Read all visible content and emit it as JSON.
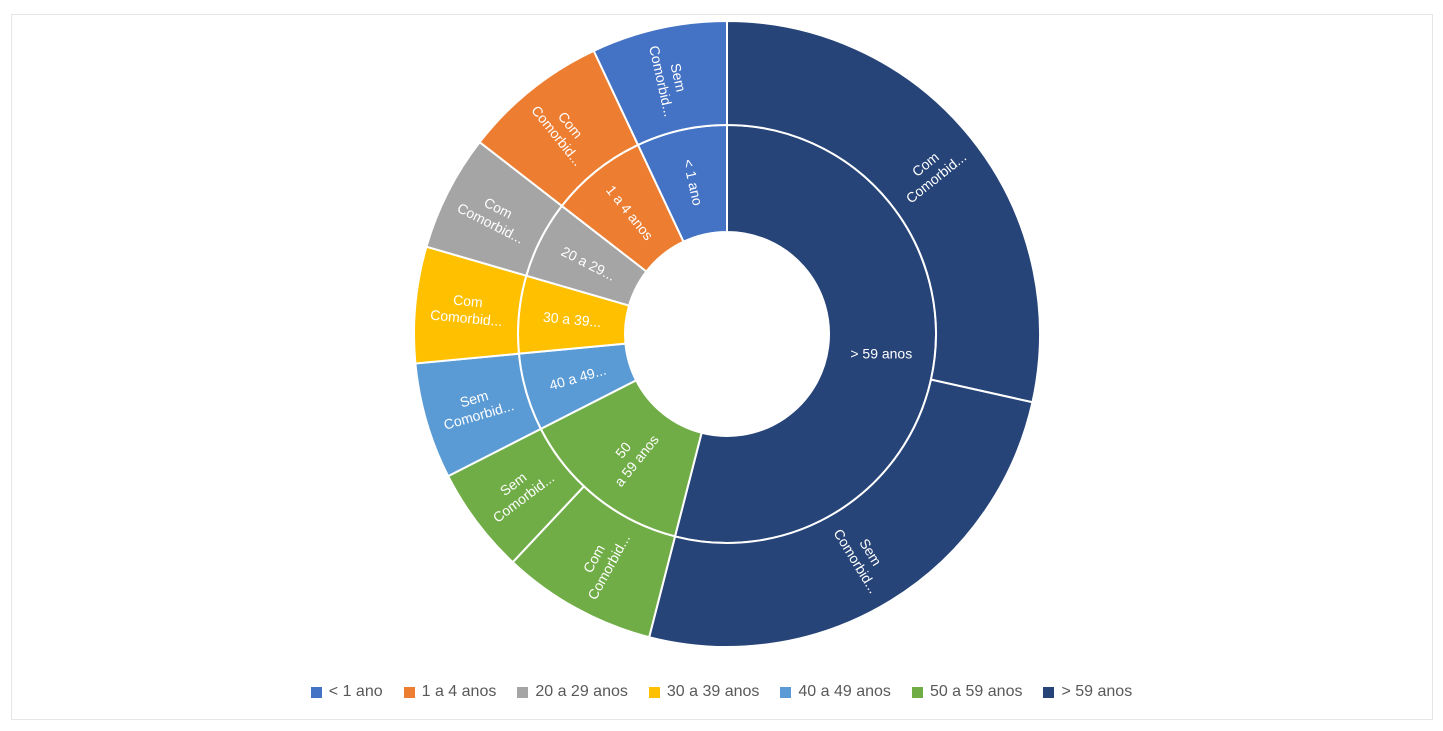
{
  "chart_data": {
    "type": "sunburst",
    "title": "",
    "legend_position": "bottom",
    "colors": {
      "< 1 ano": "#4472c4",
      "1 a 4 anos": "#ed7d31",
      "20 a 29 anos": "#a5a5a5",
      "30 a 39 anos": "#ffc000",
      "40 a 49 anos": "#5b9bd5",
      "50 a 59 anos": "#70ad47",
      "> 59 anos": "#264478"
    },
    "legend": [
      "< 1 ano",
      "1 a 4 anos",
      "20 a 29 anos",
      "30 a 39 anos",
      "40 a 49 anos",
      "50 a 59 anos",
      "> 59 anos"
    ],
    "inner_ring": [
      {
        "category": "> 59 anos",
        "label": "> 59 anos",
        "value": 54.0
      },
      {
        "category": "50 a 59 anos",
        "label": "50 a 59 anos",
        "value": 13.5
      },
      {
        "category": "40 a 49 anos",
        "label": "40 a 49...",
        "value": 6.0
      },
      {
        "category": "30 a 39 anos",
        "label": "30 a 39...",
        "value": 6.0
      },
      {
        "category": "20 a 29 anos",
        "label": "20 a 29...",
        "value": 6.0
      },
      {
        "category": "1 a 4 anos",
        "label": "1 a 4 anos",
        "value": 7.5
      },
      {
        "category": "< 1 ano",
        "label": "< 1 ano",
        "value": 7.0
      }
    ],
    "outer_ring": [
      {
        "parent": "> 59 anos",
        "label": "Com Comorbid...",
        "value": 28.5
      },
      {
        "parent": "> 59 anos",
        "label": "Sem Comorbid...",
        "value": 25.5
      },
      {
        "parent": "50 a 59 anos",
        "label": "Com Comorbid...",
        "value": 8.0
      },
      {
        "parent": "50 a 59 anos",
        "label": "Sem Comorbid...",
        "value": 5.5
      },
      {
        "parent": "40 a 49 anos",
        "label": "Sem Comorbid...",
        "value": 6.0
      },
      {
        "parent": "30 a 39 anos",
        "label": "Com Comorbid...",
        "value": 6.0
      },
      {
        "parent": "20 a 29 anos",
        "label": "Com Comorbid...",
        "value": 6.0
      },
      {
        "parent": "1 a 4 anos",
        "label": "Com Comorbid...",
        "value": 7.5
      },
      {
        "parent": "< 1 ano",
        "label": "Sem Comorbid...",
        "value": 7.0
      }
    ]
  }
}
